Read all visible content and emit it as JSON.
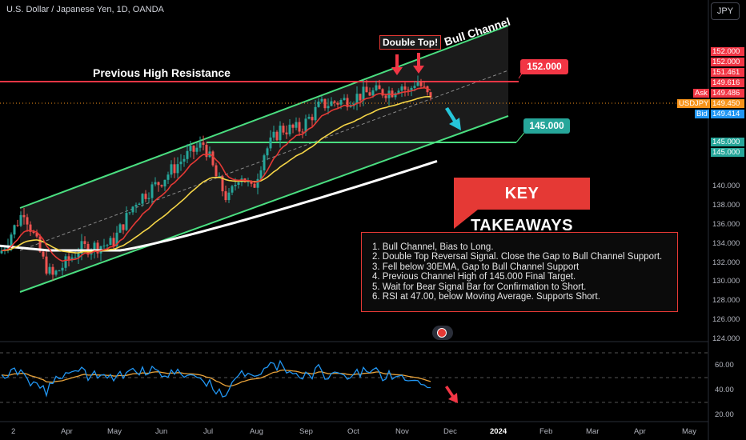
{
  "header": {
    "symbol_line": "U.S. Dollar / Japanese Yen, 1D, OANDA"
  },
  "currency_button": "JPY",
  "annotations": {
    "double_top": "Double Top!",
    "bull_channel": "Bull Channel",
    "previous_high": "Previous High Resistance",
    "resistance_level": "152.000",
    "target_level": "145.000",
    "key_takeaways_title": "KEY TAKEAWAYS",
    "takeaways": [
      "1. Bull Channel, Bias to Long.",
      "2. Double Top Reversal Signal. Close the Gap to Bull Channel Support.",
      "3. Fell below 30EMA, Gap to Bull Channel Support",
      "4. Previous Channel High of 145.000 Final Target.",
      "5. Wait for Bear Signal Bar for Confirmation to Short.",
      "6. RSI at 47.00, below Moving Average. Supports Short."
    ]
  },
  "price_scale": {
    "ticks": [
      "140.000",
      "138.000",
      "136.000",
      "134.000",
      "132.000",
      "130.000",
      "128.000",
      "126.000",
      "124.000"
    ],
    "tags": [
      {
        "text": "152.000",
        "color": "#f23645",
        "y": 65
      },
      {
        "text": "152.000",
        "color": "#f23645",
        "y": 78
      },
      {
        "text": "151.461",
        "color": "#f23645",
        "y": 91
      },
      {
        "text": "149.616",
        "color": "#f23645",
        "y": 104
      },
      {
        "text": "Ask",
        "label": true,
        "y": 117
      },
      {
        "text": "149.486",
        "color": "#f23645",
        "y": 117
      },
      {
        "text": "USDJPY",
        "label": true,
        "y": 130
      },
      {
        "text": "149.450",
        "color": "#f7931a",
        "y": 130
      },
      {
        "text": "Bid",
        "label": true,
        "y": 143
      },
      {
        "text": "149.414",
        "color": "#2196f3",
        "y": 143
      },
      {
        "text": "145.000",
        "color": "#26a69a",
        "y": 178
      },
      {
        "text": "145.000",
        "color": "#26a69a",
        "y": 191
      }
    ]
  },
  "rsi_scale": {
    "ticks": [
      "60.00",
      "40.00",
      "20.00"
    ]
  },
  "time_axis": {
    "labels": [
      "2",
      "Apr",
      "May",
      "Jun",
      "Jul",
      "Aug",
      "Sep",
      "Oct",
      "Nov",
      "Dec",
      "2024",
      "Feb",
      "Mar",
      "Apr",
      "May"
    ]
  },
  "colors": {
    "bull": "#26a69a",
    "bear": "#ef5350",
    "channel": "#4ade80",
    "resistance": "#f23645",
    "ema_fast": "#e53935",
    "ema_slow": "#f5d547",
    "sma_long": "#ffffff",
    "rsi": "#2196f3",
    "rsi_ma": "#e8a23a",
    "arrow_down": "#26c6da"
  },
  "chart_data": {
    "type": "candlestick",
    "instrument": "USDJPY",
    "timeframe": "1D",
    "ylim": [
      123.5,
      153.5
    ],
    "price_levels": {
      "resistance": 152.0,
      "target": 145.0,
      "last": 149.45,
      "ask": 149.486,
      "bid": 149.414
    },
    "monthly_closes": [
      {
        "month": "Mar",
        "close": 133.0
      },
      {
        "month": "Apr",
        "close": 136.3
      },
      {
        "month": "May",
        "close": 139.3
      },
      {
        "month": "Jun",
        "close": 144.3
      },
      {
        "month": "Jul",
        "close": 142.3
      },
      {
        "month": "Aug",
        "close": 145.5
      },
      {
        "month": "Sep",
        "close": 149.3
      },
      {
        "month": "Oct",
        "close": 151.6
      },
      {
        "month": "Nov",
        "close": 148.0
      }
    ],
    "rsi": {
      "ylim": [
        15,
        78
      ],
      "last": 47.0,
      "levels": [
        70,
        50,
        30
      ]
    }
  }
}
